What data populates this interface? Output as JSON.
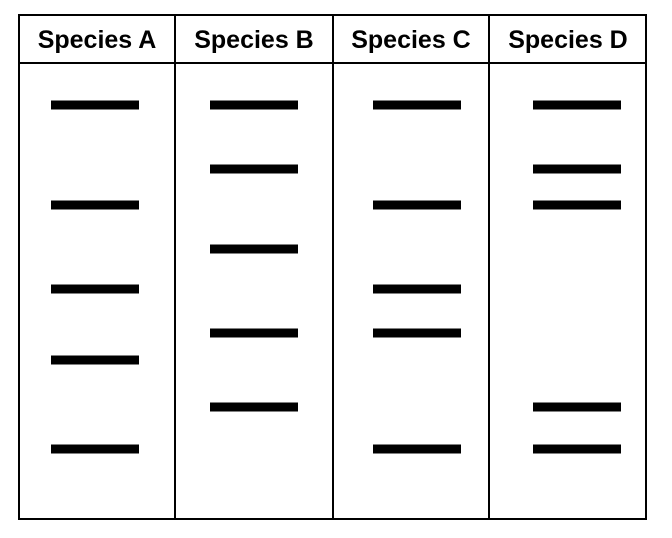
{
  "lanes": [
    {
      "label": "Species A",
      "bands": [
        1,
        3,
        5,
        7,
        9
      ]
    },
    {
      "label": "Species B",
      "bands": [
        1,
        2,
        4,
        6,
        8
      ]
    },
    {
      "label": "Species C",
      "bands": [
        1,
        3,
        5,
        6,
        9
      ]
    },
    {
      "label": "Species D",
      "bands": [
        1,
        2,
        3,
        8,
        9
      ]
    }
  ],
  "colors": {
    "band": "#000000",
    "border": "#000000",
    "background": "#ffffff"
  }
}
